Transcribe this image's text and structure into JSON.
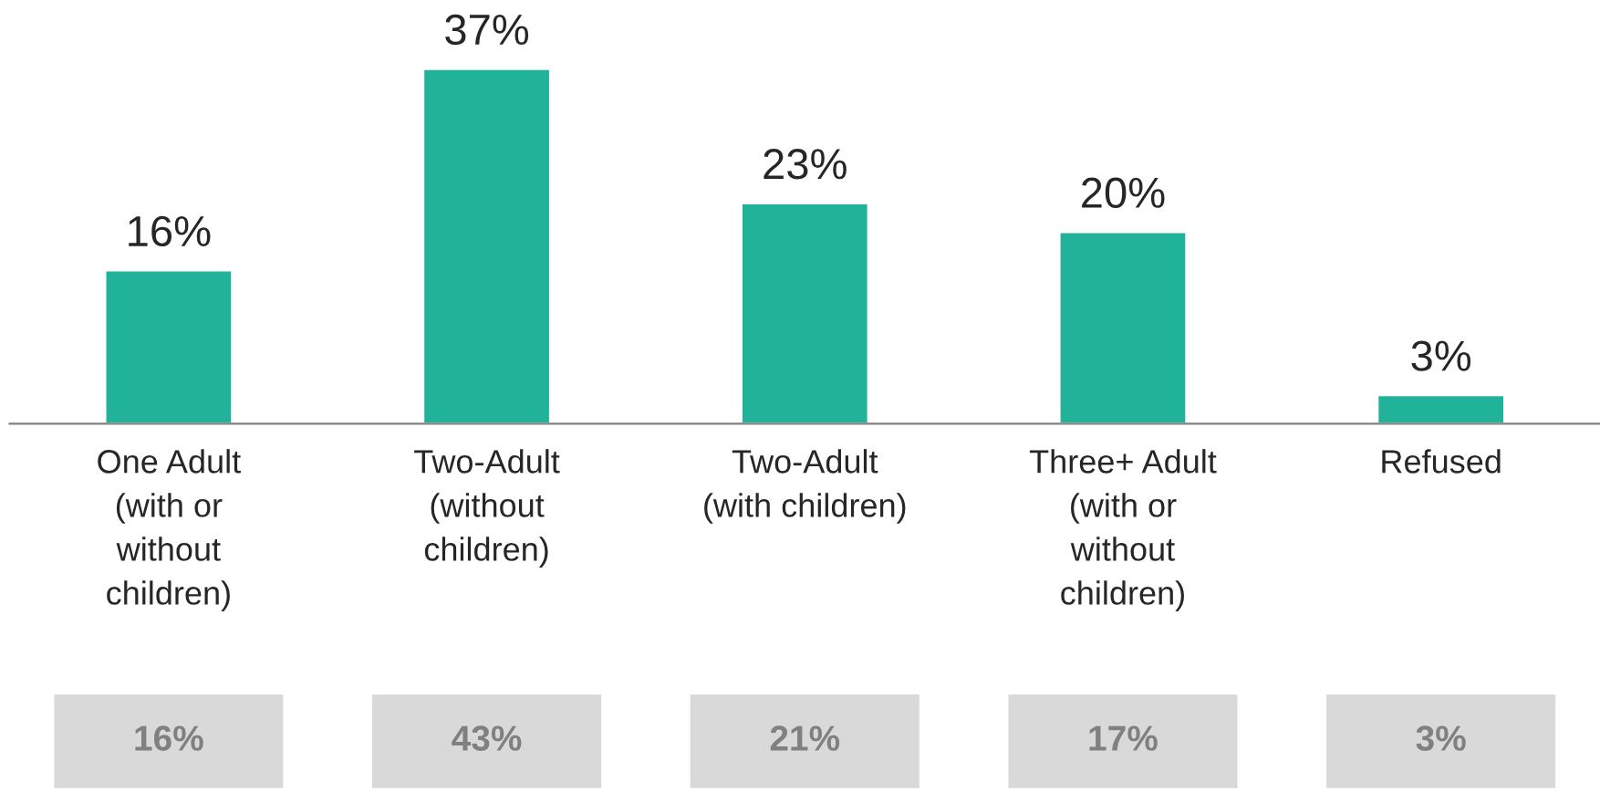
{
  "chart_data": {
    "type": "bar",
    "categories": [
      "One Adult\n(with or\nwithout\nchildren)",
      "Two-Adult\n(without\nchildren)",
      "Two-Adult\n(with children)",
      "Three+ Adult\n(with or\nwithout\nchildren)",
      "Refused"
    ],
    "values": [
      16,
      37,
      23,
      20,
      3
    ],
    "value_labels": [
      "16%",
      "37%",
      "23%",
      "20%",
      "3%"
    ],
    "color": "#20b39a",
    "annotations": [
      "16%",
      "43%",
      "21%",
      "17%",
      "3%"
    ],
    "grid": false,
    "legend": false
  }
}
